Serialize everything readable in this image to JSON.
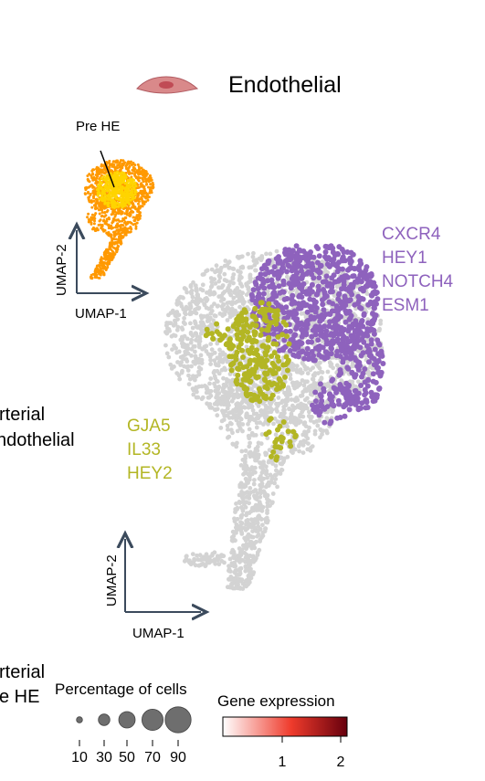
{
  "header": {
    "title": "Endothelial",
    "cell_icon": "endothelial-cell-icon"
  },
  "inset": {
    "annotation": "Pre HE",
    "x_axis": "UMAP-1",
    "y_axis": "UMAP-2"
  },
  "main": {
    "x_axis": "UMAP-1",
    "y_axis": "UMAP-2"
  },
  "markers": {
    "purple": {
      "genes": [
        "CXCR4",
        "HEY1",
        "NOTCH4",
        "ESM1"
      ],
      "color": "#8e62bd"
    },
    "olive": {
      "genes": [
        "GJA5",
        "IL33",
        "HEY2"
      ],
      "color": "#b3b624"
    }
  },
  "side_labels": {
    "arterial_endothelial": [
      "rterial",
      "ndothelial"
    ],
    "arterial_pre_he": [
      "rterial",
      "e HE"
    ]
  },
  "legend": {
    "size_title": "Percentage of cells",
    "size_ticks": [
      "10",
      "30",
      "50",
      "70",
      "90"
    ],
    "color_title": "Gene expression",
    "color_ticks": [
      "1",
      "2"
    ],
    "colors": {
      "low": "#ffffff",
      "mid": "#ef3b2c",
      "high": "#67000d"
    }
  },
  "colors": {
    "background_cells": "#d3d3d3",
    "inset_outer": "#ff9900",
    "inset_inner": "#ffd400",
    "axis": "#3b4a5c"
  }
}
